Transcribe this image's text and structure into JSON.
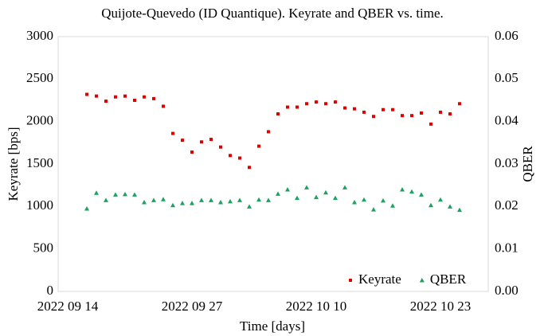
{
  "chart_data": {
    "type": "scatter",
    "title": "Quijote-Quevedo (ID Quantique). Keyrate and QBER vs. time.",
    "x_label": "Time [days]",
    "y_label": "Keyrate [bps]",
    "y2_label": "QBER",
    "x": [
      "2022 09 16",
      "2022 09 17",
      "2022 09 18",
      "2022 09 19",
      "2022 09 20",
      "2022 09 21",
      "2022 09 22",
      "2022 09 23",
      "2022 09 24",
      "2022 09 25",
      "2022 09 26",
      "2022 09 27",
      "2022 09 28",
      "2022 09 29",
      "2022 09 30",
      "2022 10 01",
      "2022 10 02",
      "2022 10 03",
      "2022 10 04",
      "2022 10 05",
      "2022 10 06",
      "2022 10 07",
      "2022 10 08",
      "2022 10 09",
      "2022 10 10",
      "2022 10 11",
      "2022 10 12",
      "2022 10 13",
      "2022 10 14",
      "2022 10 15",
      "2022 10 16",
      "2022 10 17",
      "2022 10 18",
      "2022 10 19",
      "2022 10 20",
      "2022 10 21",
      "2022 10 22",
      "2022 10 23",
      "2022 10 24",
      "2022 10 25"
    ],
    "series": [
      {
        "name": "Keyrate",
        "color": "#e00000",
        "marker": "square",
        "values": [
          2320,
          2300,
          2240,
          2290,
          2300,
          2250,
          2290,
          2270,
          2180,
          1860,
          1780,
          1640,
          1760,
          1790,
          1700,
          1600,
          1570,
          1460,
          1710,
          1880,
          2090,
          2170,
          2170,
          2210,
          2230,
          2210,
          2230,
          2160,
          2150,
          2110,
          2060,
          2140,
          2140,
          2070,
          2070,
          2100,
          1970,
          2110,
          2090,
          2210
        ]
      },
      {
        "name": "QBER",
        "color": "#1aa35f",
        "marker": "triangle",
        "axis": "y2",
        "values": [
          0.0195,
          0.0232,
          0.0215,
          0.0228,
          0.0229,
          0.0228,
          0.021,
          0.0215,
          0.0217,
          0.0203,
          0.0208,
          0.0208,
          0.0215,
          0.0215,
          0.021,
          0.0212,
          0.0215,
          0.02,
          0.0216,
          0.0215,
          0.023,
          0.024,
          0.022,
          0.0245,
          0.0222,
          0.0233,
          0.022,
          0.0245,
          0.021,
          0.0216,
          0.0193,
          0.0214,
          0.0202,
          0.024,
          0.0235,
          0.0228,
          0.0203,
          0.0216,
          0.02,
          0.0192
        ]
      }
    ],
    "xlim": [
      "2022 09 13",
      "2022 10 28"
    ],
    "xticks": [
      "2022 09 14",
      "2022 09 27",
      "2022 10 10",
      "2022 10 23"
    ],
    "ylim": [
      0,
      3000
    ],
    "yticks": [
      0,
      500,
      1000,
      1500,
      2000,
      2500,
      3000
    ],
    "y2lim": [
      0,
      0.06
    ],
    "y2ticks": [
      {
        "value": 0,
        "label": "0.00"
      },
      {
        "value": 0.01,
        "label": "0.01"
      },
      {
        "value": 0.02,
        "label": "0.02"
      },
      {
        "value": 0.03,
        "label": "0.03"
      },
      {
        "value": 0.04,
        "label": "0.04"
      },
      {
        "value": 0.05,
        "label": "0.05"
      },
      {
        "value": 0.06,
        "label": "0.06"
      }
    ],
    "grid": false,
    "legend": "lower right"
  }
}
